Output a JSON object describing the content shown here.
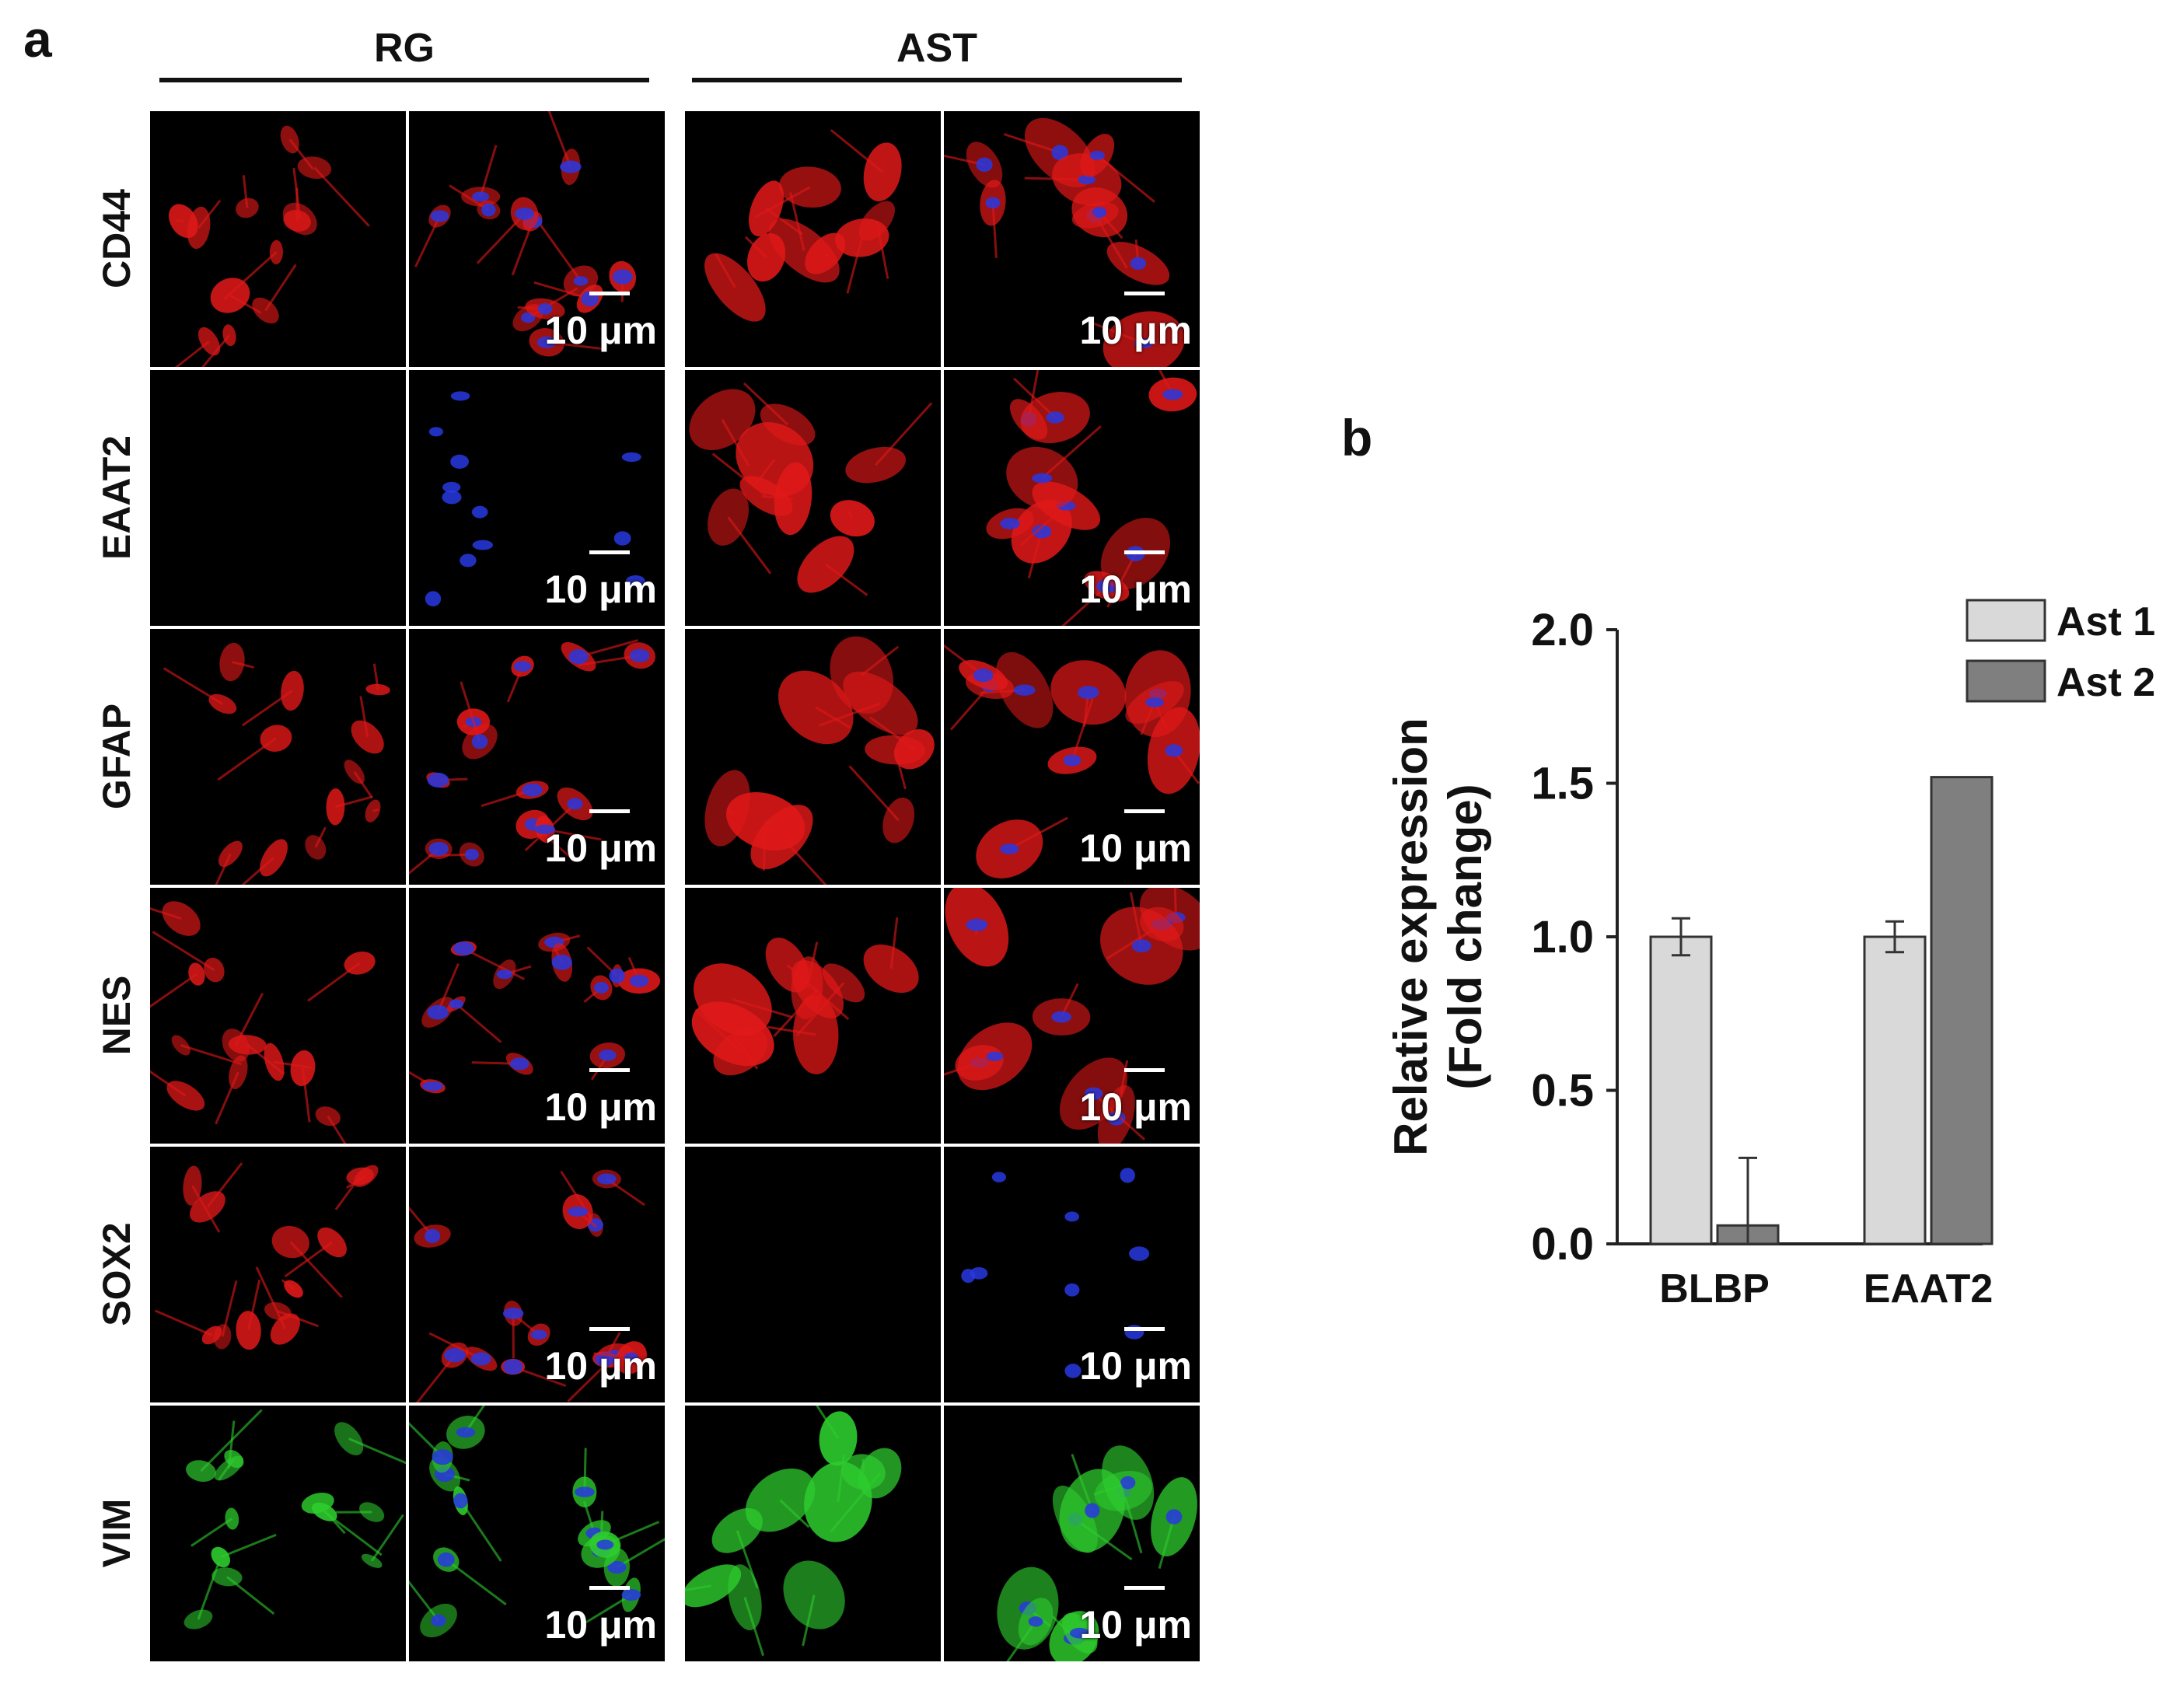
{
  "panel_a": {
    "letter": "a",
    "groups": [
      {
        "label": "RG"
      },
      {
        "label": "AST"
      }
    ],
    "rows": [
      {
        "label": "CD44",
        "marker_color": "#e01818"
      },
      {
        "label": "EAAT2",
        "marker_color": "#e01818"
      },
      {
        "label": "GFAP",
        "marker_color": "#e01818"
      },
      {
        "label": "NES",
        "marker_color": "#e01818"
      },
      {
        "label": "SOX2",
        "marker_color": "#e01818"
      },
      {
        "label": "VIM",
        "marker_color": "#2ecc2e"
      }
    ],
    "nucleus_color": "#2838e0",
    "scale_text": "10 μm"
  },
  "panel_b": {
    "letter": "b",
    "chart_data": {
      "type": "bar",
      "categories": [
        "BLBP",
        "EAAT2"
      ],
      "series": [
        {
          "name": "Ast 1",
          "values": [
            1.0,
            1.0
          ],
          "errors": [
            0.06,
            0.05
          ],
          "color": "#d9d9d9"
        },
        {
          "name": "Ast 2",
          "values": [
            0.06,
            1.52
          ],
          "errors": [
            0.22,
            0.0
          ],
          "color": "#7f7f7f"
        }
      ],
      "ylabel_line1": "Relative expression",
      "ylabel_line2": "(Fold change)",
      "ylim": [
        0,
        2.0
      ],
      "yticks": [
        "0.0",
        "0.5",
        "1.0",
        "1.5",
        "2.0"
      ],
      "legend_position": "top-right",
      "grid": false
    }
  }
}
